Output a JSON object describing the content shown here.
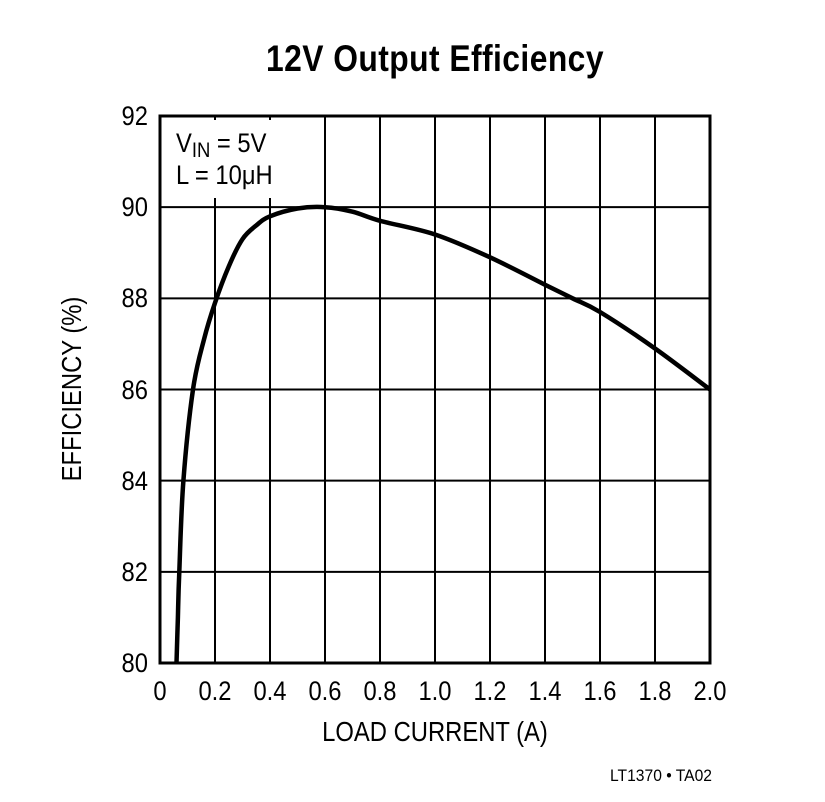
{
  "title": "12V Output Efficiency",
  "annotation": {
    "line1_main": "V",
    "line1_sub": "IN",
    "line1_rest": " = 5V",
    "line2": "L = 10μH"
  },
  "axes": {
    "xlabel": "LOAD CURRENT (A)",
    "ylabel": "EFFICIENCY (%)",
    "xticks": [
      "0",
      "0.2",
      "0.4",
      "0.6",
      "0.8",
      "1.0",
      "1.2",
      "1.4",
      "1.6",
      "1.8",
      "2.0"
    ],
    "yticks": [
      "92",
      "90",
      "88",
      "86",
      "84",
      "82",
      "80"
    ]
  },
  "footnote": "LT1370 • TA02",
  "chart_data": {
    "type": "line",
    "title": "12V Output Efficiency",
    "xlabel": "LOAD CURRENT (A)",
    "ylabel": "EFFICIENCY (%)",
    "xlim": [
      0,
      2.0
    ],
    "ylim": [
      80,
      92
    ],
    "xticks": [
      0,
      0.2,
      0.4,
      0.6,
      0.8,
      1.0,
      1.2,
      1.4,
      1.6,
      1.8,
      2.0
    ],
    "yticks": [
      80,
      82,
      84,
      86,
      88,
      90,
      92
    ],
    "grid": true,
    "annotations": [
      "VIN = 5V",
      "L = 10μH"
    ],
    "series": [
      {
        "name": "Efficiency",
        "x": [
          0.06,
          0.065,
          0.07,
          0.085,
          0.12,
          0.16,
          0.2,
          0.25,
          0.3,
          0.35,
          0.4,
          0.5,
          0.6,
          0.7,
          0.8,
          1.0,
          1.2,
          1.4,
          1.5,
          1.6,
          1.8,
          2.0
        ],
        "y": [
          80.0,
          81.0,
          82.0,
          84.0,
          86.0,
          87.1,
          87.9,
          88.7,
          89.3,
          89.6,
          89.8,
          89.97,
          90.0,
          89.9,
          89.7,
          89.4,
          88.9,
          88.3,
          88.0,
          87.7,
          86.9,
          86.0
        ]
      }
    ],
    "footnote": "LT1370 • TA02"
  }
}
